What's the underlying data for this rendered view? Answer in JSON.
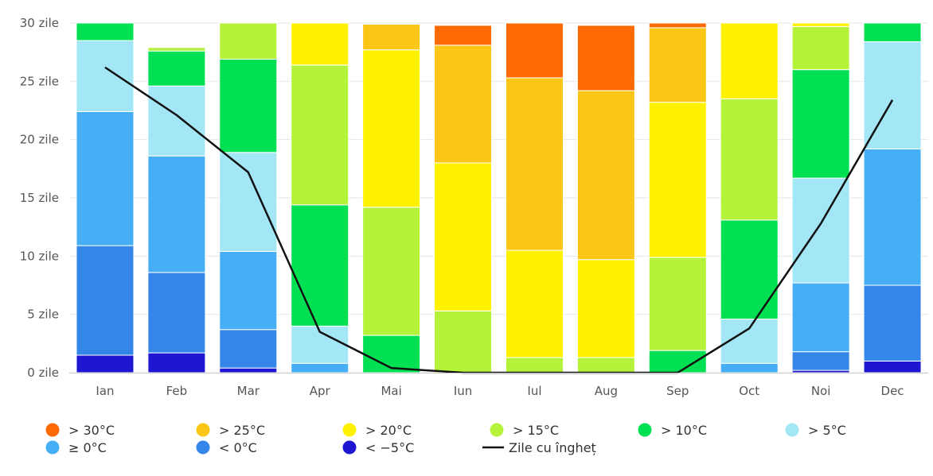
{
  "chart_data": {
    "type": "bar",
    "stacked": true,
    "categories": [
      "Ian",
      "Feb",
      "Mar",
      "Apr",
      "Mai",
      "Iun",
      "Iul",
      "Aug",
      "Sep",
      "Oct",
      "Noi",
      "Dec"
    ],
    "ylim": [
      0,
      30
    ],
    "yticks": [
      0,
      5,
      10,
      15,
      20,
      25,
      30
    ],
    "ytick_labels": [
      "0 zile",
      "5 zile",
      "10 zile",
      "15 zile",
      "20 zile",
      "25 zile",
      "30 zile"
    ],
    "grid": true,
    "legend_position": "bottom",
    "series": [
      {
        "name": "< −5°C",
        "color": "#1f16d1",
        "values": [
          1.5,
          1.7,
          0.4,
          0,
          0,
          0,
          0,
          0,
          0,
          0,
          0.2,
          1.0
        ]
      },
      {
        "name": "< 0°C",
        "color": "#3486e8",
        "values": [
          9.4,
          6.9,
          3.3,
          0,
          0,
          0,
          0,
          0,
          0,
          0,
          1.6,
          6.5
        ]
      },
      {
        "name": "≥ 0°C",
        "color": "#45aef4",
        "values": [
          11.5,
          10.0,
          6.7,
          0.8,
          0,
          0,
          0,
          0,
          0,
          0.8,
          5.9,
          11.7
        ]
      },
      {
        "name": "> 5°C",
        "color": "#a3e6f5",
        "values": [
          6.1,
          6.0,
          8.5,
          3.2,
          0,
          0,
          0,
          0,
          0,
          3.8,
          9.0,
          9.2
        ]
      },
      {
        "name": "> 10°C",
        "color": "#00e052",
        "values": [
          1.5,
          3.0,
          8.0,
          10.4,
          3.2,
          0,
          0,
          0,
          1.9,
          8.5,
          9.3,
          1.6
        ]
      },
      {
        "name": "> 15°C",
        "color": "#b5f23a",
        "values": [
          0,
          0.3,
          3.1,
          12.0,
          11.0,
          5.3,
          1.3,
          1.3,
          8.0,
          10.4,
          3.7,
          0
        ]
      },
      {
        "name": "> 20°C",
        "color": "#fff200",
        "values": [
          0,
          0,
          0,
          3.6,
          13.5,
          12.7,
          9.2,
          8.4,
          13.3,
          6.5,
          0.3,
          0
        ]
      },
      {
        "name": "> 25°C",
        "color": "#fbc615",
        "values": [
          0,
          0,
          0,
          0,
          2.2,
          10.1,
          14.8,
          14.5,
          6.4,
          0,
          0,
          0
        ]
      },
      {
        "name": "> 30°C",
        "color": "#fd6a03",
        "values": [
          0,
          0,
          0,
          0,
          0,
          1.7,
          4.7,
          5.6,
          0.4,
          0,
          0,
          0
        ]
      }
    ],
    "line": {
      "name": "Zile cu îngheț",
      "color": "#111111",
      "values": [
        26.2,
        22.1,
        17.2,
        3.5,
        0.4,
        0,
        0,
        0,
        0,
        3.8,
        12.8,
        23.4
      ]
    },
    "legend": [
      {
        "label": "> 30°C",
        "color": "#fd6a03",
        "kind": "dot"
      },
      {
        "label": "> 25°C",
        "color": "#fbc615",
        "kind": "dot"
      },
      {
        "label": "> 20°C",
        "color": "#fff200",
        "kind": "dot"
      },
      {
        "label": "> 15°C",
        "color": "#b5f23a",
        "kind": "dot"
      },
      {
        "label": "> 10°C",
        "color": "#00e052",
        "kind": "dot"
      },
      {
        "label": "> 5°C",
        "color": "#a3e6f5",
        "kind": "dot"
      },
      {
        "label": "≥ 0°C",
        "color": "#45aef4",
        "kind": "dot"
      },
      {
        "label": "< 0°C",
        "color": "#3486e8",
        "kind": "dot"
      },
      {
        "label": "< −5°C",
        "color": "#1f16d1",
        "kind": "dot"
      },
      {
        "label": "Zile cu îngheț",
        "color": "#111111",
        "kind": "line"
      }
    ]
  }
}
